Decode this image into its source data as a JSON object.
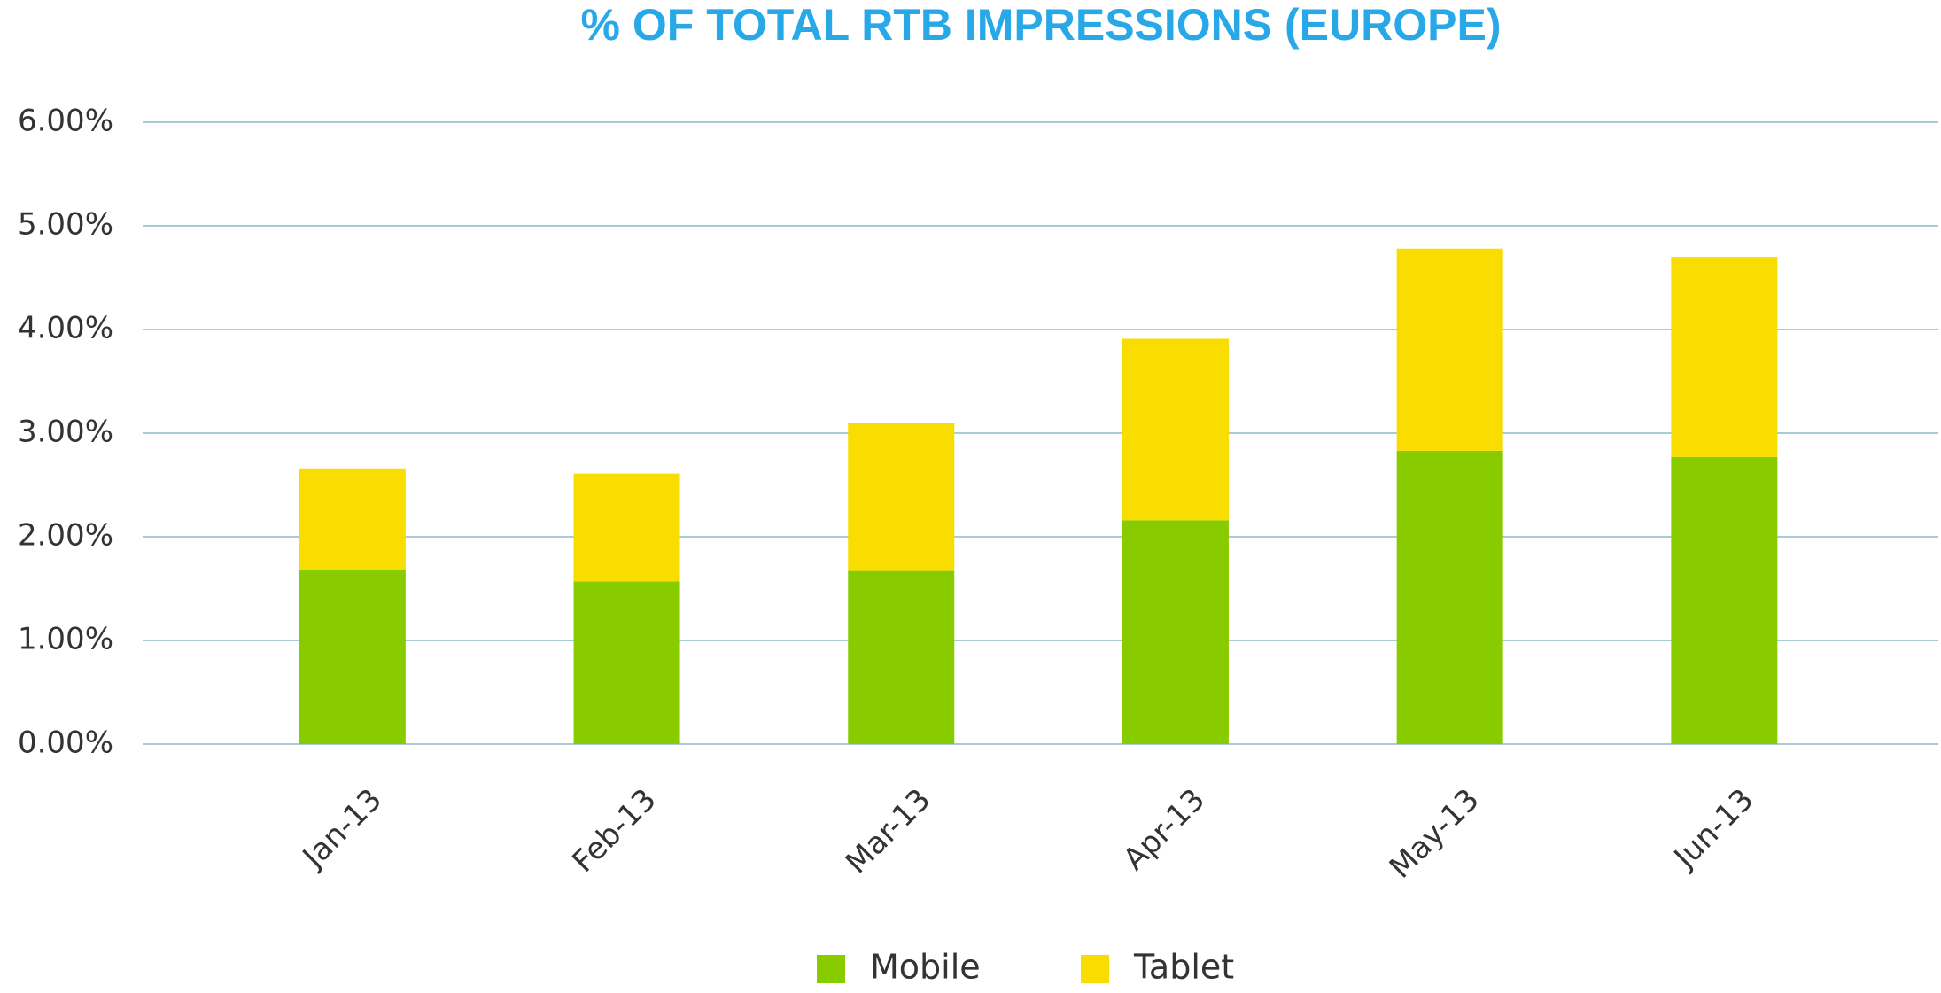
{
  "chart_data": {
    "type": "stacked_bar",
    "title": "% OF TOTAL RTB IMPRESSIONS (EUROPE)",
    "categories": [
      "Jan-13",
      "Feb-13",
      "Mar-13",
      "Apr-13",
      "May-13",
      "Jun-13"
    ],
    "series": [
      {
        "name": "Mobile",
        "color": "#88cc00",
        "values": [
          1.68,
          1.57,
          1.67,
          2.16,
          2.83,
          2.77
        ]
      },
      {
        "name": "Tablet",
        "color": "#f9dd00",
        "values": [
          0.98,
          1.04,
          1.43,
          1.75,
          1.95,
          1.93
        ]
      }
    ],
    "ylim": [
      0,
      6
    ],
    "yticks": [
      {
        "value": 0,
        "label": "0.00%"
      },
      {
        "value": 1,
        "label": "1.00%"
      },
      {
        "value": 2,
        "label": "2.00%"
      },
      {
        "value": 3,
        "label": "3.00%"
      },
      {
        "value": 4,
        "label": "4.00%"
      },
      {
        "value": 5,
        "label": "5.00%"
      },
      {
        "value": 6,
        "label": "6.00%"
      }
    ],
    "grid": true,
    "legend": "bottom"
  }
}
